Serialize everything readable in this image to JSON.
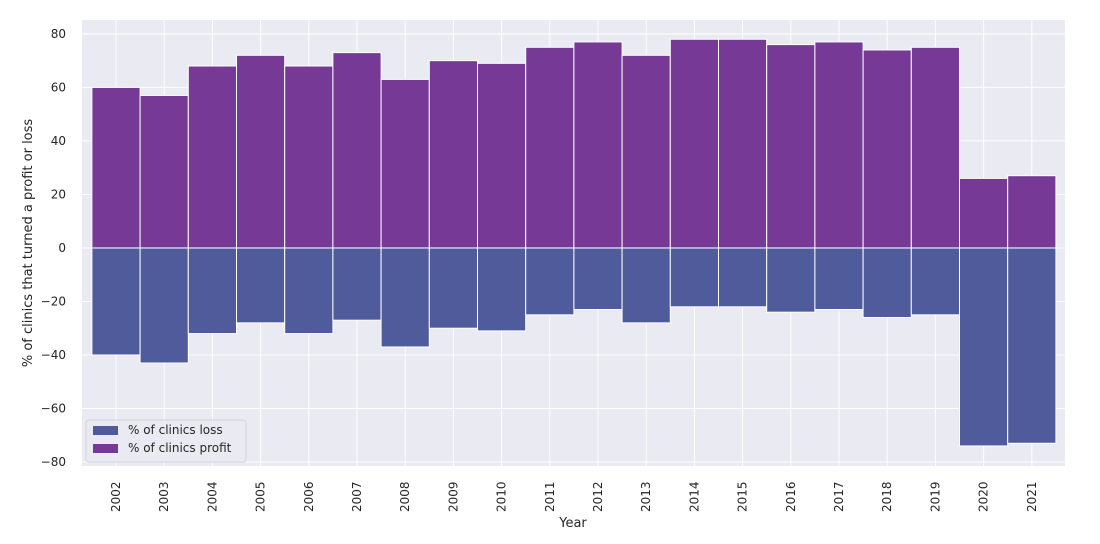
{
  "chart_data": {
    "type": "bar",
    "stacked": true,
    "title": "",
    "xlabel": "Year",
    "ylabel": "% of clinics that turned a profit or loss",
    "categories": [
      "2002",
      "2003",
      "2004",
      "2005",
      "2006",
      "2007",
      "2008",
      "2009",
      "2010",
      "2011",
      "2012",
      "2013",
      "2014",
      "2015",
      "2016",
      "2017",
      "2018",
      "2019",
      "2020",
      "2021"
    ],
    "series": [
      {
        "name": "% of clinics loss",
        "color": "#4f5b9a",
        "values": [
          -40,
          -43,
          -32,
          -28,
          -32,
          -27,
          -37,
          -30,
          -31,
          -25,
          -23,
          -28,
          -22,
          -22,
          -24,
          -23,
          -26,
          -25,
          -74,
          -73
        ]
      },
      {
        "name": "% of clinics profit",
        "color": "#763a96",
        "values": [
          60,
          57,
          68,
          72,
          68,
          73,
          63,
          70,
          69,
          75,
          77,
          72,
          78,
          78,
          76,
          77,
          74,
          75,
          26,
          27
        ]
      }
    ],
    "yticks": [
      -80,
      -60,
      -40,
      -20,
      0,
      20,
      40,
      60,
      80
    ],
    "ylim": [
      -81.5,
      85.2
    ],
    "grid": true,
    "background": "#eaeaf2",
    "legend_position": "lower-left"
  }
}
